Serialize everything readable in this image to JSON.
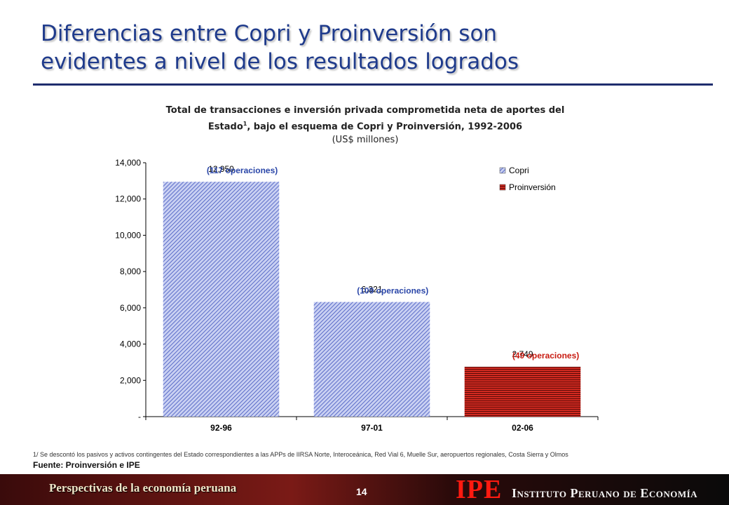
{
  "slide": {
    "title_line1": "Diferencias entre Copri y Proinversión son",
    "title_line2": "evidentes a nivel de los resultados logrados"
  },
  "chart_header": {
    "line1": "Total de transacciones e inversión privada comprometida neta de aportes del",
    "line2_pre": "Estado",
    "line2_sup": "1",
    "line2_post": ", bajo el esquema de Copri y Proinversión, 1992-2006",
    "units": "(US$ millones)"
  },
  "chart_data": {
    "type": "bar",
    "categories": [
      "92-96",
      "97-01",
      "02-06"
    ],
    "values": [
      12950,
      6321,
      2749
    ],
    "value_labels": [
      "12,950",
      "6,321",
      "2,749"
    ],
    "annotations": [
      "(117 operaciones)",
      "(109 operaciones)",
      "(49 operaciones)"
    ],
    "bar_series": [
      "Copri",
      "Copri",
      "Proinversión"
    ],
    "series": [
      {
        "name": "Copri",
        "color": "#8a9ae0"
      },
      {
        "name": "Proinversión",
        "color": "#b81a14"
      }
    ],
    "yticks": [
      0,
      2000,
      4000,
      6000,
      8000,
      10000,
      12000,
      14000
    ],
    "ytick_labels": [
      "-",
      "2,000",
      "4,000",
      "6,000",
      "8,000",
      "10,000",
      "12,000",
      "14,000"
    ],
    "ylim": [
      0,
      14000
    ],
    "legend": "top-right",
    "grid": false,
    "annotation_colors": {
      "Copri": "#2a46a8",
      "Proinversión": "#c81a10"
    }
  },
  "footer": {
    "footnote": "1/ Se descontó los pasivos y activos contingentes del Estado correspondientes a las APPs de IIRSA Norte, Interoceánica, Red Vial 6, Muelle Sur, aeropuertos regionales, Costa Sierra y Olmos",
    "source": "Fuente: Proinversión e IPE",
    "series_name": "Perspectivas de la economía peruana",
    "page_number": "14",
    "logo": "IPE",
    "institute": "Instituto Peruano de Economía"
  }
}
